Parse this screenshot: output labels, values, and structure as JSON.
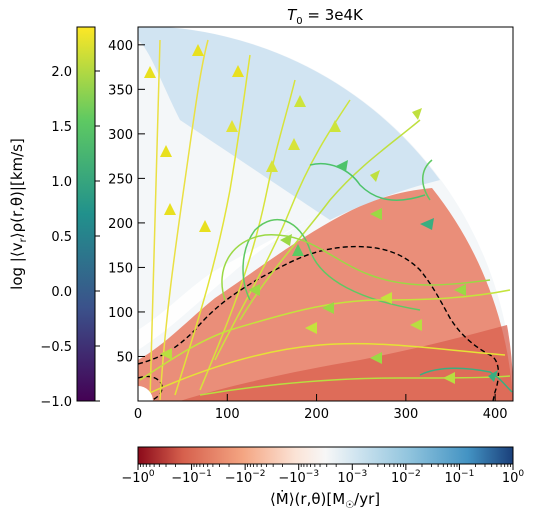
{
  "chart_data": {
    "type": "heatmap",
    "title": "T_0 = 3e4K",
    "title_parts": {
      "sym": "T",
      "sub": "0",
      "rest": " = 3e4K"
    },
    "xlabel": "",
    "ylabel": "",
    "xlim": [
      0,
      420
    ],
    "ylim": [
      0,
      420
    ],
    "xticks": [
      0,
      100,
      200,
      300,
      400
    ],
    "yticks": [
      50,
      100,
      150,
      200,
      250,
      300,
      350,
      400
    ],
    "domain_radius": 420,
    "field": "mass inflow/outflow rate map with streamlines",
    "contour_style": "black dashed",
    "velocity_colorbar": {
      "label": "log |⟨v_r⟩_ρ(r,θ)| [km/s]",
      "label_text": "log |⟨v",
      "label_sub": "r",
      "label_rest": "⟩ρ(r,θ)|[km/s]",
      "range": [
        -1.0,
        2.4
      ],
      "ticks": [
        -1.0,
        -0.5,
        0.0,
        0.5,
        1.0,
        1.5,
        2.0
      ],
      "tick_labels": [
        "−1.0",
        "−0.5",
        "0.0",
        "0.5",
        "1.0",
        "1.5",
        "2.0"
      ],
      "colormap": "viridis",
      "colors": [
        "#440154",
        "#3b528b",
        "#21918c",
        "#5ec962",
        "#fde725"
      ]
    },
    "mdot_colorbar": {
      "label": "⟨Ṁ⟩(r,θ)[M☉/yr]",
      "label_text": "⟨Ṁ⟩(r,θ)[M",
      "label_sub": "☉",
      "label_rest": "/yr]",
      "tick_labels": [
        {
          "base": "−10",
          "exp": "0"
        },
        {
          "base": "−10",
          "exp": "−1"
        },
        {
          "base": "−10",
          "exp": "−2"
        },
        {
          "base": "−10",
          "exp": "−3"
        },
        {
          "base": "10",
          "exp": "−3"
        },
        {
          "base": "10",
          "exp": "−2"
        },
        {
          "base": "10",
          "exp": "−1"
        },
        {
          "base": "10",
          "exp": "0"
        }
      ],
      "colormap": "RdBu",
      "colors": [
        "#8b0a1a",
        "#d6604d",
        "#f4a582",
        "#fbe3d6",
        "#f7f7f7",
        "#d1e5f0",
        "#92c5de",
        "#4393c3",
        "#1a3f7a"
      ]
    }
  }
}
